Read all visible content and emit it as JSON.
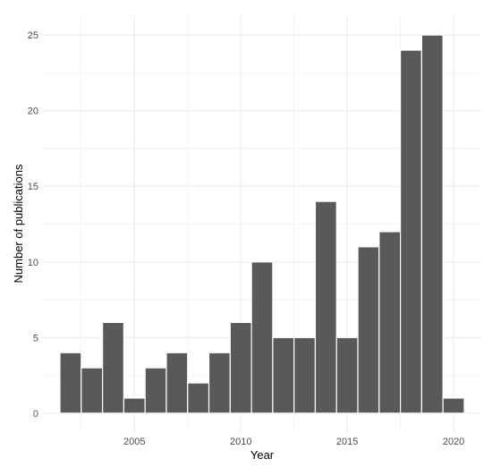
{
  "chart_data": {
    "type": "bar",
    "xlabel": "Year",
    "ylabel": "Number of publications",
    "x": [
      2002,
      2003,
      2004,
      2005,
      2006,
      2007,
      2008,
      2009,
      2010,
      2011,
      2012,
      2013,
      2014,
      2015,
      2016,
      2017,
      2018,
      2019,
      2020
    ],
    "values": [
      4,
      3,
      6,
      1,
      3,
      4,
      2,
      4,
      6,
      10,
      5,
      5,
      14,
      5,
      11,
      12,
      24,
      25,
      1
    ],
    "x_ticks": [
      2005,
      2010,
      2015,
      2020
    ],
    "y_ticks": [
      0,
      5,
      10,
      15,
      20,
      25
    ],
    "xlim": [
      2000.7,
      2021.3
    ],
    "ylim": [
      -1.25,
      26.25
    ],
    "grid": true,
    "bar_color": "#595959",
    "grid_color": "#ebebeb",
    "background": "#ffffff"
  }
}
